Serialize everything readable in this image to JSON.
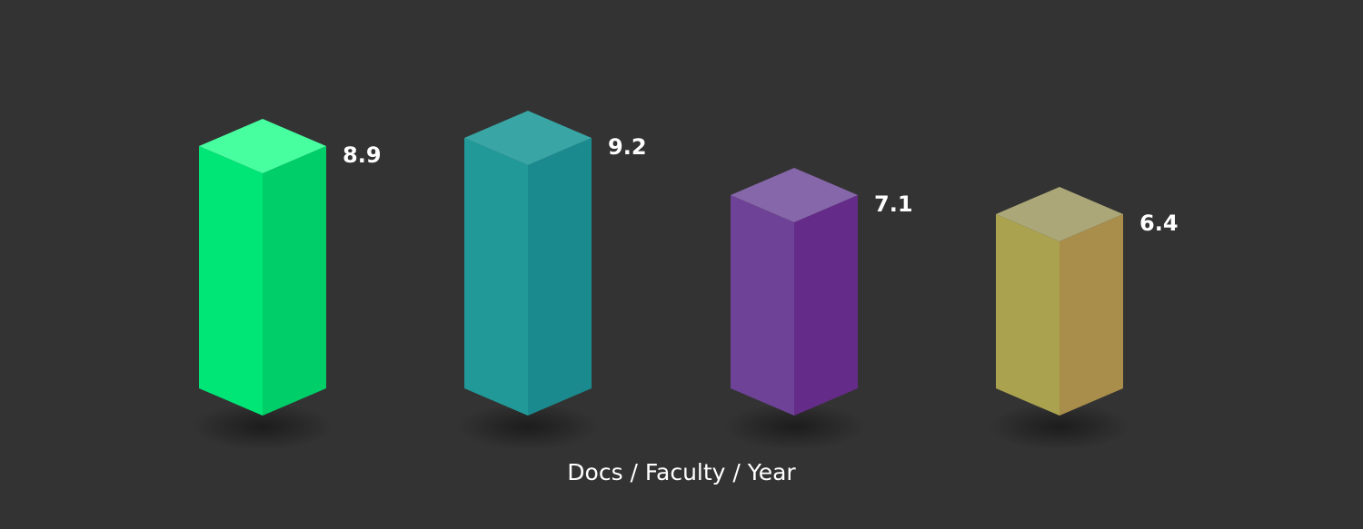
{
  "chart_data": {
    "type": "bar",
    "style": "3d-isometric-columns",
    "xlabel": "Docs / Faculty / Year",
    "categories": [
      "",
      "",
      "",
      ""
    ],
    "values": [
      8.9,
      9.2,
      7.1,
      6.4
    ],
    "value_labels": [
      "8.9",
      "9.2",
      "7.1",
      "6.4"
    ],
    "colors": [
      {
        "front": "#00e676",
        "side": "#00cf69",
        "top": "#48ff9f"
      },
      {
        "front": "#229999",
        "side": "#1b8a8e",
        "top": "#39a5a5"
      },
      {
        "front": "#6e4296",
        "side": "#652b89",
        "top": "#8667a9"
      },
      {
        "front": "#aaa24f",
        "side": "#a98d4b",
        "top": "#aba778"
      }
    ],
    "background": "#333333",
    "grid": false,
    "legend": "none"
  }
}
